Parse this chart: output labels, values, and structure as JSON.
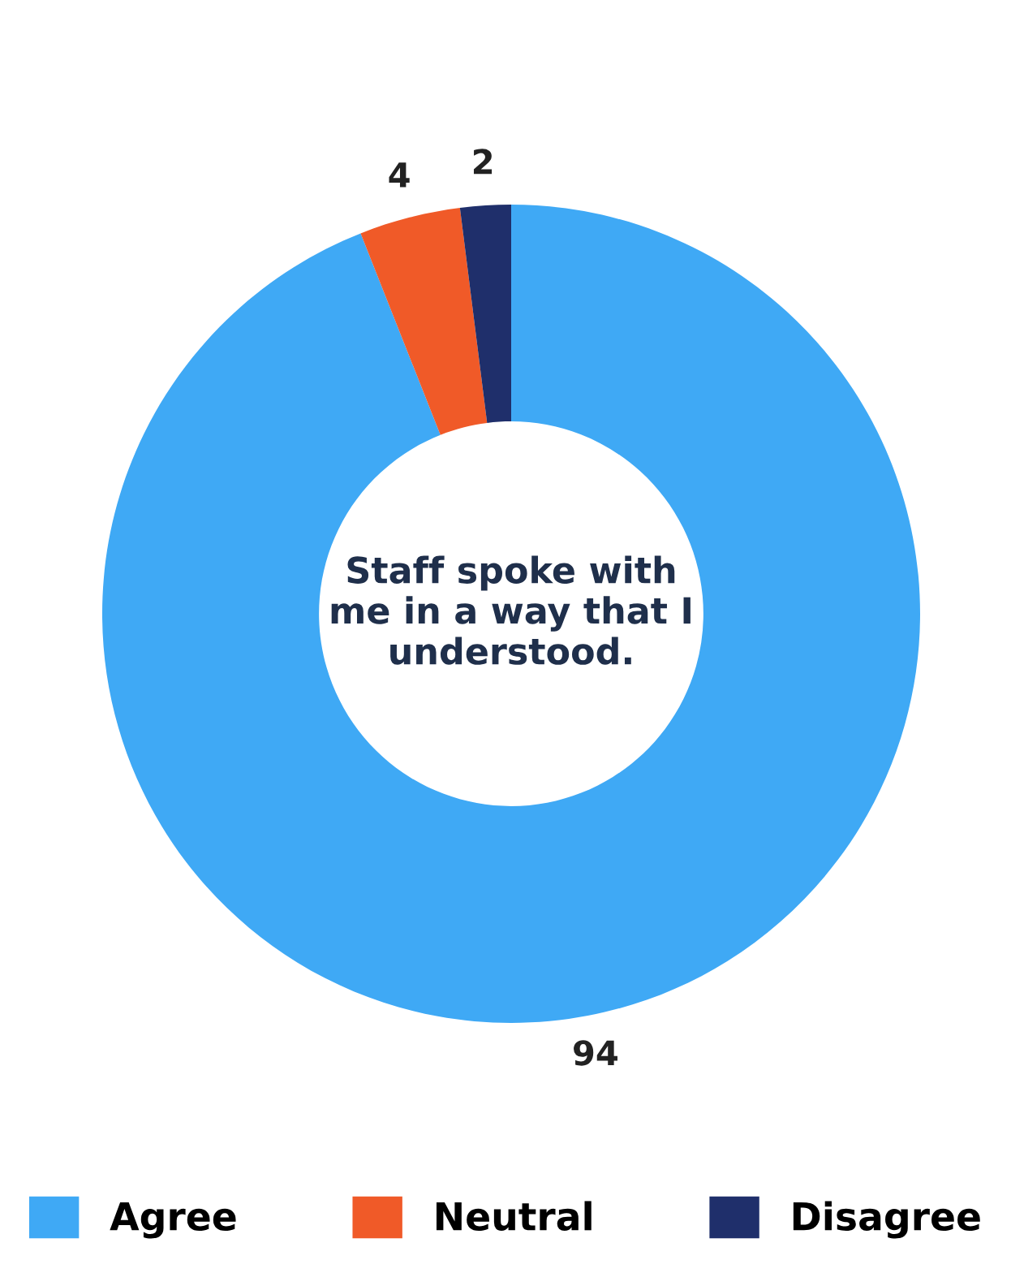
{
  "chart_data": {
    "type": "donut",
    "title": "Staff spoke with me in a way that I understood.",
    "categories": [
      "Agree",
      "Neutral",
      "Disagree"
    ],
    "values": [
      94,
      4,
      2
    ],
    "colors": [
      "#3fa9f5",
      "#f05a28",
      "#1f2f6b"
    ],
    "data_labels": true,
    "legend": "bottom"
  }
}
